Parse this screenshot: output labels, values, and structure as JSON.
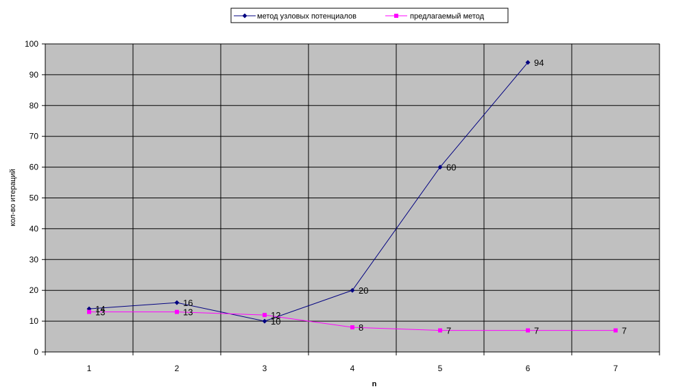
{
  "chart_data": {
    "type": "line",
    "title": "",
    "xlabel": "n",
    "ylabel": "кол-во итераций",
    "x": [
      1,
      2,
      3,
      4,
      5,
      6,
      7
    ],
    "ylim": [
      0,
      100
    ],
    "yticks": [
      0,
      10,
      20,
      30,
      40,
      50,
      60,
      70,
      80,
      90,
      100
    ],
    "grid": true,
    "legend_position": "top",
    "plot_background": "#c0c0c0",
    "series": [
      {
        "name": "метод узловых потенциалов",
        "color": "#000080",
        "marker": "diamond",
        "values": [
          14,
          16,
          10,
          20,
          60,
          94,
          null
        ]
      },
      {
        "name": "предлагаемый метод",
        "color": "#ff00ff",
        "marker": "square",
        "values": [
          13,
          13,
          12,
          8,
          7,
          7,
          7
        ]
      }
    ]
  }
}
